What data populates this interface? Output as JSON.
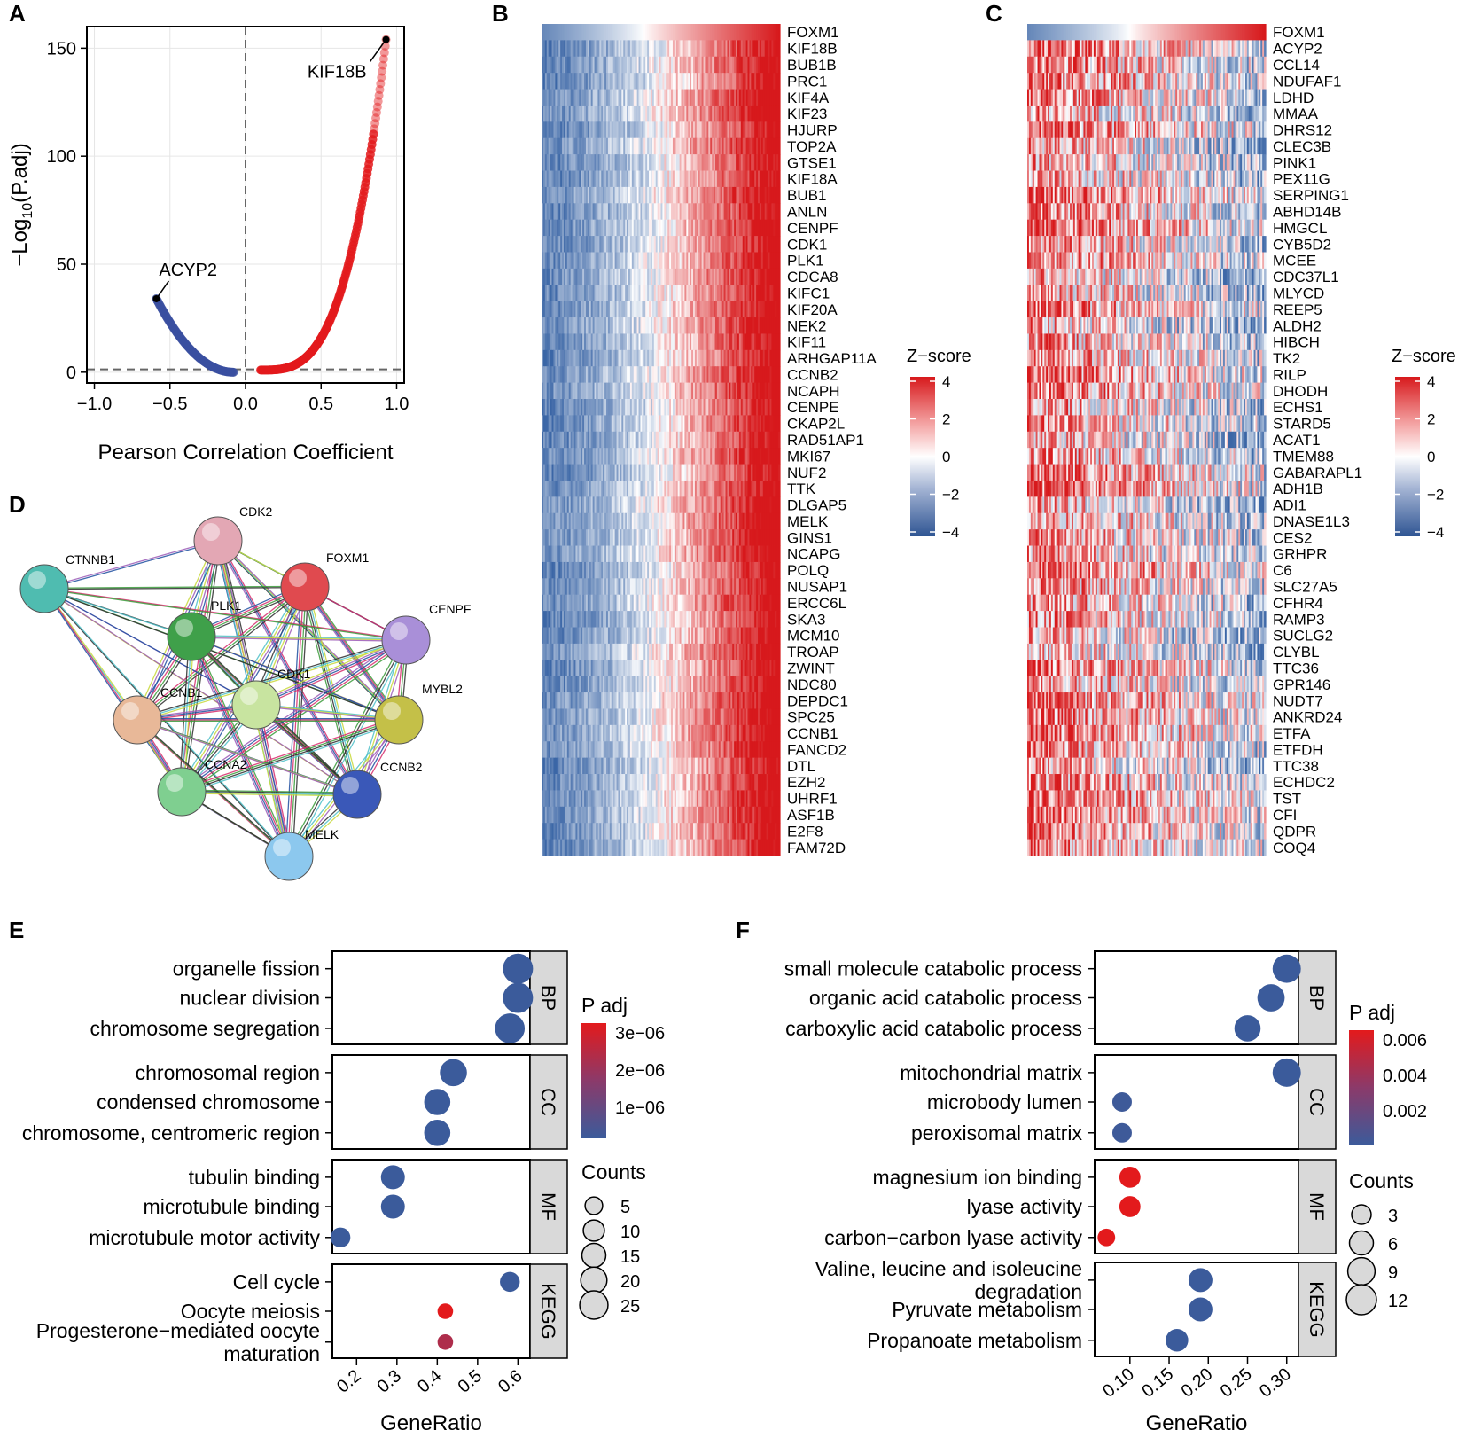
{
  "panels": {
    "A": "A",
    "B": "B",
    "C": "C",
    "D": "D",
    "E": "E",
    "F": "F"
  },
  "chart_data": [
    {
      "id": "A",
      "type": "scatter",
      "xlabel": "Pearson Correlation Coefficient",
      "ylabel_parts": [
        "−Log",
        "10",
        "(P.adj)"
      ],
      "xlim": [
        -1.05,
        1.05
      ],
      "ylim": [
        -5,
        160
      ],
      "xticks": [
        -1.0,
        -0.5,
        0.0,
        0.5,
        1.0
      ],
      "xtick_labels": [
        "−1.0",
        "−0.5",
        "0.0",
        "0.5",
        "1.0"
      ],
      "yticks": [
        0,
        50,
        100,
        150
      ],
      "ytick_labels": [
        "0",
        "50",
        "100",
        "150"
      ],
      "refline_x": 0,
      "refline_y": 1.3,
      "negative_curve": {
        "from": [
          -0.08,
          0
        ],
        "to": [
          -0.59,
          34
        ],
        "exponent": 2.0,
        "color": "#3a4fa0"
      },
      "positive_curve": {
        "from": [
          0.1,
          1
        ],
        "to": [
          0.93,
          154
        ],
        "exponent": 3.2,
        "color": "#e31a1c"
      },
      "annotations": [
        {
          "label": "KIF18B",
          "x": 0.93,
          "y": 154
        },
        {
          "label": "ACYP2",
          "x": -0.59,
          "y": 34
        }
      ]
    },
    {
      "id": "B",
      "type": "heatmap",
      "title": "Z−score",
      "legend_ticks": [
        "4",
        "2",
        "0",
        "−2",
        "−4"
      ],
      "pattern": "positive",
      "rows": [
        "FOXM1",
        "KIF18B",
        "BUB1B",
        "PRC1",
        "KIF4A",
        "KIF23",
        "HJURP",
        "TOP2A",
        "GTSE1",
        "KIF18A",
        "BUB1",
        "ANLN",
        "CENPF",
        "CDK1",
        "PLK1",
        "CDCA8",
        "KIFC1",
        "KIF20A",
        "NEK2",
        "KIF11",
        "ARHGAP11A",
        "CCNB2",
        "NCAPH",
        "CENPE",
        "CKAP2L",
        "RAD51AP1",
        "MKI67",
        "NUF2",
        "TTK",
        "DLGAP5",
        "MELK",
        "GINS1",
        "NCAPG",
        "POLQ",
        "NUSAP1",
        "ERCC6L",
        "SKA3",
        "MCM10",
        "TROAP",
        "ZWINT",
        "NDC80",
        "DEPDC1",
        "SPC25",
        "CCNB1",
        "FANCD2",
        "DTL",
        "EZH2",
        "UHRF1",
        "ASF1B",
        "E2F8",
        "FAM72D"
      ]
    },
    {
      "id": "C",
      "type": "heatmap",
      "title": "Z−score",
      "legend_ticks": [
        "4",
        "2",
        "0",
        "−2",
        "−4"
      ],
      "pattern": "negative",
      "rows": [
        "FOXM1",
        "ACYP2",
        "CCL14",
        "NDUFAF1",
        "LDHD",
        "MMAA",
        "DHRS12",
        "CLEC3B",
        "PINK1",
        "PEX11G",
        "SERPING1",
        "ABHD14B",
        "HMGCL",
        "CYB5D2",
        "MCEE",
        "CDC37L1",
        "MLYCD",
        "REEP5",
        "ALDH2",
        "HIBCH",
        "TK2",
        "RILP",
        "DHODH",
        "ECHS1",
        "STARD5",
        "ACAT1",
        "TMEM88",
        "GABARAPL1",
        "ADH1B",
        "ADI1",
        "DNASE1L3",
        "CES2",
        "GRHPR",
        "C6",
        "SLC27A5",
        "CFHR4",
        "RAMP3",
        "SUCLG2",
        "CLYBL",
        "TTC36",
        "GPR146",
        "NUDT7",
        "ANKRD24",
        "ETFA",
        "ETFDH",
        "TTC38",
        "ECHDC2",
        "TST",
        "CFI",
        "QDPR",
        "COQ4"
      ]
    },
    {
      "id": "D",
      "type": "network",
      "nodes": [
        {
          "label": "CDK2",
          "color": "#e3a7b4"
        },
        {
          "label": "FOXM1",
          "color": "#e04a4f"
        },
        {
          "label": "CTNNB1",
          "color": "#4fbcb0"
        },
        {
          "label": "PLK1",
          "color": "#3fa04a"
        },
        {
          "label": "CENPF",
          "color": "#a98fd8"
        },
        {
          "label": "CDK1",
          "color": "#c8e4a0"
        },
        {
          "label": "CCNB1",
          "color": "#e8b898"
        },
        {
          "label": "MYBL2",
          "color": "#c4c048"
        },
        {
          "label": "CCNA2",
          "color": "#7fcf90"
        },
        {
          "label": "CCNB2",
          "color": "#3a58b8"
        },
        {
          "label": "MELK",
          "color": "#8cc8ee"
        }
      ]
    },
    {
      "id": "E",
      "type": "dot",
      "xlabel": "GeneRatio",
      "xlim": [
        0.14,
        0.63
      ],
      "xticks": [
        0.2,
        0.3,
        0.4,
        0.5,
        0.6
      ],
      "xtick_labels": [
        "0.2",
        "0.3",
        "0.4",
        "0.5",
        "0.6"
      ],
      "color_title": "P adj",
      "color_ticks": [
        "3e−06",
        "2e−06",
        "1e−06"
      ],
      "size_title": "Counts",
      "size_ticks": [
        "5",
        "10",
        "15",
        "20",
        "25"
      ],
      "facets": [
        {
          "name": "BP",
          "terms": [
            {
              "lines": [
                "organelle fission"
              ],
              "ratio": 0.6,
              "count": 30,
              "padj": 0.0
            },
            {
              "lines": [
                "nuclear division"
              ],
              "ratio": 0.6,
              "count": 30,
              "padj": 0.0
            },
            {
              "lines": [
                "chromosome segregation"
              ],
              "ratio": 0.58,
              "count": 29,
              "padj": 0.0
            }
          ]
        },
        {
          "name": "CC",
          "terms": [
            {
              "lines": [
                "chromosomal region"
              ],
              "ratio": 0.44,
              "count": 22,
              "padj": 0.0
            },
            {
              "lines": [
                "condensed chromosome"
              ],
              "ratio": 0.4,
              "count": 20,
              "padj": 0.0
            },
            {
              "lines": [
                "chromosome, centromeric region"
              ],
              "ratio": 0.4,
              "count": 20,
              "padj": 0.0
            }
          ]
        },
        {
          "name": "MF",
          "terms": [
            {
              "lines": [
                "tubulin binding"
              ],
              "ratio": 0.29,
              "count": 15,
              "padj": 0.0
            },
            {
              "lines": [
                "microtubule binding"
              ],
              "ratio": 0.29,
              "count": 15,
              "padj": 0.0
            },
            {
              "lines": [
                "microtubule motor activity"
              ],
              "ratio": 0.16,
              "count": 8,
              "padj": 0.0
            }
          ]
        },
        {
          "name": "KEGG",
          "terms": [
            {
              "lines": [
                "Cell cycle"
              ],
              "ratio": 0.58,
              "count": 8,
              "padj": 0.0
            },
            {
              "lines": [
                "Oocyte meiosis"
              ],
              "ratio": 0.42,
              "count": 3,
              "padj": 1.0
            },
            {
              "lines": [
                "Progesterone−mediated oocyte",
                "maturation"
              ],
              "ratio": 0.42,
              "count": 3,
              "padj": 0.7
            }
          ]
        }
      ]
    },
    {
      "id": "F",
      "type": "dot",
      "xlabel": "GeneRatio",
      "xlim": [
        0.055,
        0.315
      ],
      "xticks": [
        0.1,
        0.15,
        0.2,
        0.25,
        0.3
      ],
      "xtick_labels": [
        "0.10",
        "0.15",
        "0.20",
        "0.25",
        "0.30"
      ],
      "color_title": "P adj",
      "color_ticks": [
        "0.006",
        "0.004",
        "0.002"
      ],
      "size_title": "Counts",
      "size_ticks": [
        "3",
        "6",
        "9",
        "12"
      ],
      "facets": [
        {
          "name": "BP",
          "terms": [
            {
              "lines": [
                "small molecule catabolic process"
              ],
              "ratio": 0.3,
              "count": 10,
              "padj": 0.0
            },
            {
              "lines": [
                "organic acid catabolic process"
              ],
              "ratio": 0.28,
              "count": 9,
              "padj": 0.0
            },
            {
              "lines": [
                "carboxylic acid catabolic process"
              ],
              "ratio": 0.25,
              "count": 8,
              "padj": 0.0
            }
          ]
        },
        {
          "name": "CC",
          "terms": [
            {
              "lines": [
                "mitochondrial matrix"
              ],
              "ratio": 0.3,
              "count": 10,
              "padj": 0.0
            },
            {
              "lines": [
                "microbody lumen"
              ],
              "ratio": 0.09,
              "count": 3,
              "padj": 0.02
            },
            {
              "lines": [
                "peroxisomal matrix"
              ],
              "ratio": 0.09,
              "count": 3,
              "padj": 0.02
            }
          ]
        },
        {
          "name": "MF",
          "terms": [
            {
              "lines": [
                "magnesium ion binding"
              ],
              "ratio": 0.1,
              "count": 4,
              "padj": 1.0
            },
            {
              "lines": [
                "lyase activity"
              ],
              "ratio": 0.1,
              "count": 4,
              "padj": 1.0
            },
            {
              "lines": [
                "carbon−carbon lyase activity"
              ],
              "ratio": 0.07,
              "count": 2,
              "padj": 1.0
            }
          ]
        },
        {
          "name": "KEGG",
          "terms": [
            {
              "lines": [
                "Valine, leucine and isoleucine",
                "degradation"
              ],
              "ratio": 0.19,
              "count": 6,
              "padj": 0.0
            },
            {
              "lines": [
                "Pyruvate metabolism"
              ],
              "ratio": 0.19,
              "count": 6,
              "padj": 0.0
            },
            {
              "lines": [
                "Propanoate metabolism"
              ],
              "ratio": 0.16,
              "count": 5,
              "padj": 0.0
            }
          ]
        }
      ]
    }
  ]
}
